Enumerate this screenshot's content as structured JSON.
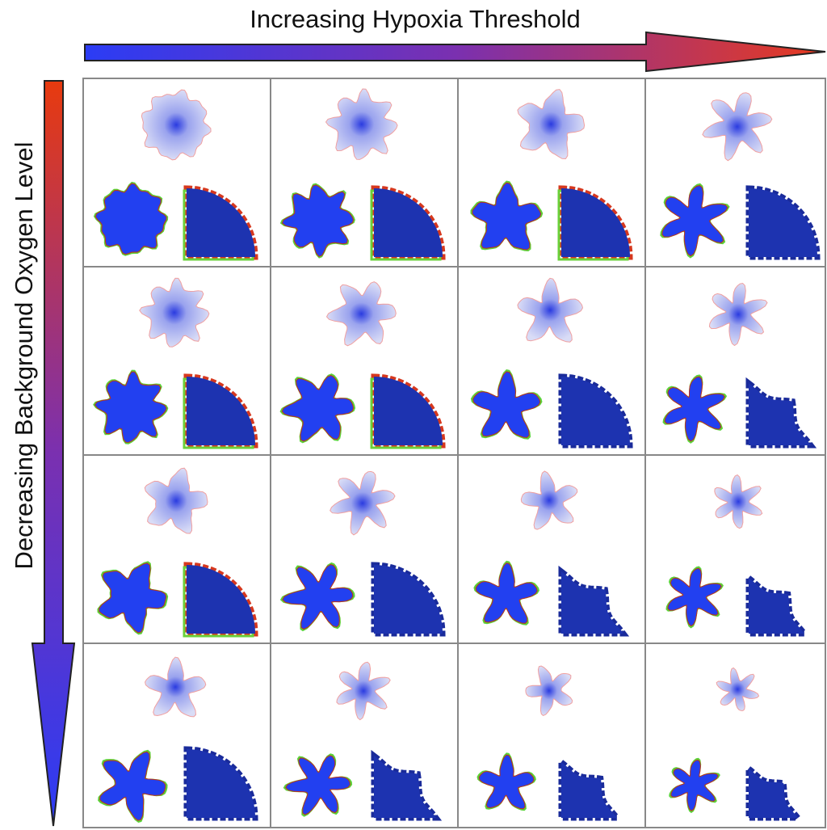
{
  "labels": {
    "x_axis": "Increasing Hypoxia Threshold",
    "y_axis": "Decreasing Background Oxygen Level"
  }
}
